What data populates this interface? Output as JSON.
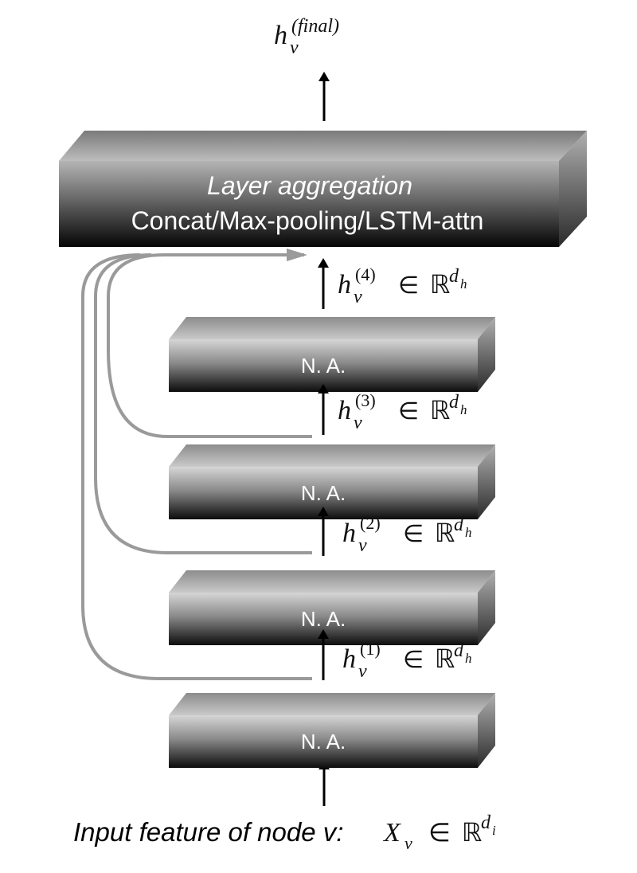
{
  "top_output": {
    "base": "h",
    "sub": "v",
    "sup": "(final)"
  },
  "aggregation": {
    "title": "Layer aggregation",
    "methods": "Concat/Max-pooling/LSTM-attn"
  },
  "layers": [
    {
      "label": "N. A."
    },
    {
      "label": "N. A."
    },
    {
      "label": "N. A."
    },
    {
      "label": "N. A."
    }
  ],
  "hidden_outputs": [
    {
      "base": "h",
      "sub": "v",
      "sup": "(1)",
      "in": "∈",
      "space": "ℝ",
      "dim": "d",
      "dim_sub": "h"
    },
    {
      "base": "h",
      "sub": "v",
      "sup": "(2)",
      "in": "∈",
      "space": "ℝ",
      "dim": "d",
      "dim_sub": "h"
    },
    {
      "base": "h",
      "sub": "v",
      "sup": "(3)",
      "in": "∈",
      "space": "ℝ",
      "dim": "d",
      "dim_sub": "h"
    },
    {
      "base": "h",
      "sub": "v",
      "sup": "(4)",
      "in": "∈",
      "space": "ℝ",
      "dim": "d",
      "dim_sub": "h"
    }
  ],
  "input": {
    "text": "Input feature of node v: ",
    "var": "X",
    "var_sub": "v",
    "in": "∈",
    "space": "ℝ",
    "dim": "d",
    "dim_sub": "i"
  },
  "colors": {
    "block_dark": "#111111",
    "block_light": "#d9d9d9",
    "skip_line": "#9a9a9a",
    "arrow": "#000000"
  }
}
